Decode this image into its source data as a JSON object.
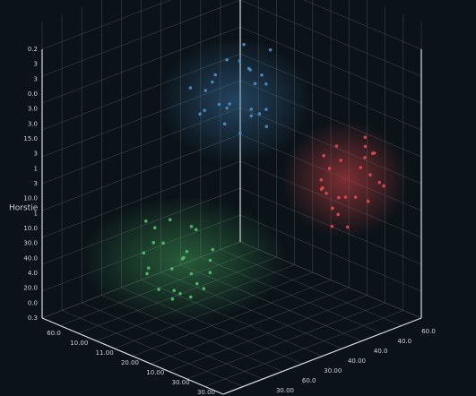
{
  "chart_data": {
    "type": "scatter3d",
    "y_label": "Horstie",
    "vertical_axis_labels": [
      "0.3",
      "0.0",
      "20.0",
      "4.0",
      "40.0",
      "30.0",
      "10.0",
      "1",
      "10.0",
      "3",
      "1",
      "3",
      "15.0",
      "3.0",
      "3.0",
      "0.0",
      "3",
      "3",
      "0.2"
    ],
    "left_axis_labels": [
      "60.0",
      "10.00",
      "11.00",
      "20.00",
      "10.00",
      "30.00",
      "30.00"
    ],
    "right_axis_labels": [
      "60.0",
      "40.0",
      "40.0",
      "40.00",
      "30.00",
      "60.0",
      "30.00"
    ],
    "xlim": [
      0,
      1
    ],
    "ylim": [
      0,
      1
    ],
    "zlim": [
      0,
      1
    ],
    "grid": true,
    "series": [
      {
        "color": "#4b8fc4",
        "x": [
          0.3,
          0.45,
          0.38,
          0.52,
          0.27,
          0.41,
          0.35,
          0.48,
          0.33,
          0.44,
          0.29,
          0.5,
          0.4,
          0.36,
          0.46,
          0.31,
          0.42,
          0.39,
          0.55,
          0.25,
          0.37,
          0.47,
          0.34,
          0.43,
          0.32
        ],
        "y": [
          0.82,
          0.7,
          0.88,
          0.76,
          0.68,
          0.79,
          0.73,
          0.85,
          0.64,
          0.91,
          0.77,
          0.72,
          0.67,
          0.83,
          0.8,
          0.71,
          0.86,
          0.74,
          0.69,
          0.78,
          0.93,
          0.66,
          0.81,
          0.75,
          0.87
        ],
        "z": [
          0.4,
          0.28,
          0.35,
          0.42,
          0.45,
          0.3,
          0.5,
          0.33,
          0.38,
          0.25,
          0.44,
          0.36,
          0.31,
          0.47,
          0.29,
          0.39,
          0.34,
          0.41,
          0.37,
          0.48,
          0.32,
          0.43,
          0.26,
          0.46,
          0.36
        ]
      },
      {
        "color": "#e04a4e",
        "x": [
          0.72,
          0.8,
          0.85,
          0.75,
          0.69,
          0.82,
          0.78,
          0.88,
          0.74,
          0.79,
          0.71,
          0.84,
          0.77,
          0.81,
          0.76,
          0.86,
          0.73,
          0.83,
          0.7,
          0.79,
          0.9,
          0.68,
          0.87,
          0.75,
          0.8
        ],
        "y": [
          0.55,
          0.45,
          0.6,
          0.4,
          0.52,
          0.58,
          0.35,
          0.48,
          0.62,
          0.43,
          0.5,
          0.56,
          0.38,
          0.65,
          0.47,
          0.53,
          0.42,
          0.59,
          0.46,
          0.33,
          0.51,
          0.57,
          0.44,
          0.49,
          0.61
        ],
        "z": [
          0.15,
          0.2,
          0.1,
          0.22,
          0.18,
          0.12,
          0.25,
          0.08,
          0.19,
          0.14,
          0.24,
          0.16,
          0.21,
          0.11,
          0.26,
          0.13,
          0.17,
          0.09,
          0.23,
          0.18,
          0.12,
          0.2,
          0.15,
          0.27,
          0.1
        ]
      },
      {
        "color": "#52c06c",
        "x": [
          0.45,
          0.55,
          0.6,
          0.48,
          0.4,
          0.52,
          0.58,
          0.43,
          0.5,
          0.63,
          0.47,
          0.54,
          0.38,
          0.57,
          0.49,
          0.44,
          0.61,
          0.53,
          0.42,
          0.56,
          0.46,
          0.59,
          0.51,
          0.36,
          0.62
        ],
        "y": [
          0.35,
          0.25,
          0.3,
          0.2,
          0.4,
          0.28,
          0.18,
          0.33,
          0.38,
          0.22,
          0.27,
          0.42,
          0.24,
          0.32,
          0.15,
          0.36,
          0.26,
          0.31,
          0.44,
          0.21,
          0.29,
          0.34,
          0.19,
          0.37,
          0.23
        ],
        "z": [
          0.8,
          0.75,
          0.7,
          0.85,
          0.72,
          0.82,
          0.78,
          0.88,
          0.68,
          0.76,
          0.9,
          0.74,
          0.81,
          0.66,
          0.79,
          0.84,
          0.71,
          0.77,
          0.86,
          0.73,
          0.69,
          0.83,
          0.8,
          0.76,
          0.87
        ]
      }
    ]
  }
}
